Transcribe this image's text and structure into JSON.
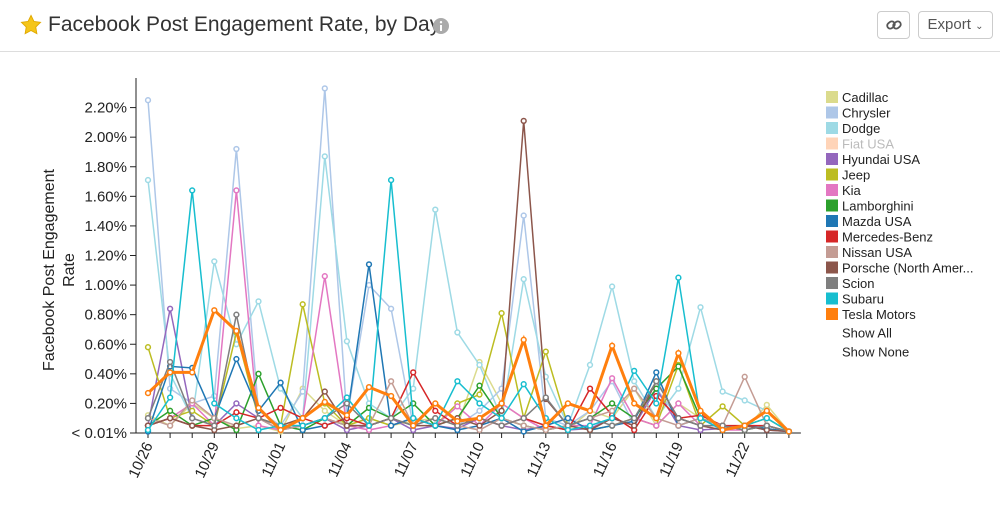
{
  "header": {
    "title": "Facebook Post Engagement Rate, by Day",
    "export": "Export"
  },
  "chart_data": {
    "type": "line",
    "y_label": "Facebook Post Engagement Rate",
    "categories": [
      "10/26",
      null,
      null,
      "10/29",
      null,
      null,
      "11/01",
      null,
      null,
      "11/04",
      null,
      null,
      "11/07",
      null,
      null,
      "11/10",
      null,
      null,
      "11/13",
      null,
      null,
      "11/16",
      null,
      null,
      "11/19",
      null,
      null,
      "11/22",
      null,
      null
    ],
    "ylim": [
      0,
      2.4
    ],
    "yticks": [
      {
        "value": 0,
        "label": "< 0.01%"
      },
      {
        "value": 0.2,
        "label": "0.20%"
      },
      {
        "value": 0.4,
        "label": "0.40%"
      },
      {
        "value": 0.6,
        "label": "0.60%"
      },
      {
        "value": 0.8,
        "label": "0.80%"
      },
      {
        "value": 1.0,
        "label": "1.00%"
      },
      {
        "value": 1.2,
        "label": "1.20%"
      },
      {
        "value": 1.4,
        "label": "1.40%"
      },
      {
        "value": 1.6,
        "label": "1.60%"
      },
      {
        "value": 1.8,
        "label": "1.80%"
      },
      {
        "value": 2.0,
        "label": "2.00%"
      },
      {
        "value": 2.2,
        "label": "2.20%"
      }
    ],
    "legend_controls": [
      "Show All",
      "Show None"
    ],
    "series": [
      {
        "name": "Cadillac",
        "color": "#dbdb8d",
        "values": [
          0.12,
          0.05,
          0.2,
          0.1,
          0.03,
          0.05,
          0.01,
          0.3,
          0.15,
          0.05,
          0.1,
          0.05,
          0.08,
          0.1,
          0.05,
          0.48,
          0.2,
          0.1,
          0.05,
          0.02,
          0.15,
          0.1,
          0.3,
          0.05,
          0.2,
          0.1,
          0.05,
          0.02,
          0.19,
          0.01
        ]
      },
      {
        "name": "Chrysler",
        "color": "#aec7e8",
        "values": [
          2.25,
          0.3,
          0.2,
          0.25,
          1.92,
          0.15,
          0.05,
          0.28,
          2.33,
          0.1,
          1.0,
          0.84,
          0.05,
          0.1,
          0.05,
          0.15,
          0.3,
          1.47,
          0.1,
          0.05,
          0.15,
          0.35,
          0.05,
          0.3,
          0.1,
          0.05,
          0.02,
          0.05,
          0.1,
          0.01
        ]
      },
      {
        "name": "Dodge",
        "color": "#9edae5",
        "values": [
          1.71,
          0.4,
          0.1,
          1.16,
          0.6,
          0.89,
          0.3,
          0.1,
          1.87,
          0.62,
          0.2,
          0.1,
          0.3,
          1.51,
          0.68,
          0.46,
          0.1,
          1.04,
          0.38,
          0.05,
          0.46,
          0.99,
          0.35,
          0.1,
          0.3,
          0.85,
          0.28,
          0.22,
          0.15,
          0.01
        ]
      },
      {
        "name": "Fiat USA",
        "color": "#ffd4b8",
        "visible": false
      },
      {
        "name": "Hyundai USA",
        "color": "#9467bd",
        "values": [
          0.05,
          0.84,
          0.1,
          0.05,
          0.2,
          0.1,
          0.02,
          0.05,
          0.1,
          0.02,
          0.05,
          0.1,
          0.02,
          0.05,
          0.03,
          0.1,
          0.05,
          0.02,
          0.05,
          0.02,
          0.03,
          0.1,
          0.05,
          0.3,
          0.05,
          0.02,
          0.03,
          0.05,
          0.02,
          0.01
        ]
      },
      {
        "name": "Jeep",
        "color": "#bcbd22",
        "values": [
          0.58,
          0.1,
          0.15,
          0.05,
          0.68,
          0.1,
          0.05,
          0.87,
          0.2,
          0.05,
          0.1,
          0.05,
          0.1,
          0.05,
          0.2,
          0.26,
          0.81,
          0.1,
          0.55,
          0.05,
          0.02,
          0.05,
          0.1,
          0.05,
          0.46,
          0.05,
          0.18,
          0.05,
          0.1,
          0.01
        ]
      },
      {
        "name": "Kia",
        "color": "#e377c2",
        "values": [
          0.05,
          0.1,
          0.2,
          0.05,
          1.64,
          0.05,
          0.02,
          0.1,
          1.06,
          0.05,
          0.02,
          0.05,
          0.1,
          0.05,
          0.18,
          0.05,
          0.2,
          0.1,
          0.02,
          0.05,
          0.05,
          0.37,
          0.1,
          0.05,
          0.2,
          0.05,
          0.02,
          0.02,
          0.05,
          0.01
        ]
      },
      {
        "name": "Lamborghini",
        "color": "#2ca02c",
        "values": [
          0.05,
          0.15,
          0.05,
          0.1,
          0.02,
          0.4,
          0.05,
          0.02,
          0.1,
          0.05,
          0.17,
          0.1,
          0.2,
          0.05,
          0.1,
          0.32,
          0.1,
          0.05,
          0.02,
          0.05,
          0.1,
          0.2,
          0.1,
          0.3,
          0.45,
          0.1,
          0.05,
          0.02,
          0.05,
          0.01
        ]
      },
      {
        "name": "Mazda USA",
        "color": "#1f77b4",
        "values": [
          0.01,
          0.45,
          0.44,
          0.1,
          0.5,
          0.15,
          0.34,
          0.02,
          0.05,
          0.1,
          1.14,
          0.05,
          0.1,
          0.05,
          0.02,
          0.05,
          0.1,
          0.01,
          0.05,
          0.1,
          0.02,
          0.05,
          0.08,
          0.41,
          0.05,
          0.1,
          0.02,
          0.05,
          0.03,
          0.01
        ]
      },
      {
        "name": "Mercedes-Benz",
        "color": "#d62728",
        "values": [
          0.05,
          0.1,
          0.05,
          0.05,
          0.14,
          0.1,
          0.17,
          0.1,
          0.05,
          0.1,
          0.05,
          0.1,
          0.41,
          0.15,
          0.05,
          0.1,
          0.05,
          0.1,
          0.05,
          0.02,
          0.3,
          0.12,
          0.02,
          0.25,
          0.1,
          0.12,
          0.05,
          0.05,
          0.05,
          0.01
        ]
      },
      {
        "name": "Nissan USA",
        "color": "#c49c94",
        "values": [
          0.1,
          0.05,
          0.22,
          0.1,
          0.05,
          0.1,
          0.02,
          0.05,
          0.1,
          0.05,
          0.05,
          0.35,
          0.05,
          0.1,
          0.05,
          0.02,
          0.1,
          0.05,
          0.02,
          0.05,
          0.1,
          0.15,
          0.3,
          0.1,
          0.05,
          0.1,
          0.05,
          0.38,
          0.05,
          0.01
        ]
      },
      {
        "name": "Porsche (North Amer...",
        "color": "#8c564b",
        "values": [
          0.05,
          0.1,
          0.05,
          0.02,
          0.05,
          0.1,
          0.05,
          0.1,
          0.28,
          0.05,
          0.05,
          0.1,
          0.05,
          0.05,
          0.1,
          0.05,
          0.15,
          2.11,
          0.23,
          0.05,
          0.02,
          0.1,
          0.05,
          0.35,
          0.1,
          0.05,
          0.02,
          0.05,
          0.02,
          0.01
        ]
      },
      {
        "name": "Scion",
        "color": "#7f7f7f",
        "values": [
          0.1,
          0.48,
          0.1,
          0.05,
          0.8,
          0.1,
          0.05,
          0.05,
          0.1,
          0.2,
          0.05,
          0.1,
          0.05,
          0.1,
          0.05,
          0.1,
          0.05,
          0.1,
          0.24,
          0.05,
          0.1,
          0.05,
          0.1,
          0.35,
          0.1,
          0.05,
          0.05,
          0.02,
          0.05,
          0.01
        ]
      },
      {
        "name": "Subaru",
        "color": "#17becf",
        "values": [
          0.02,
          0.24,
          1.64,
          0.2,
          0.1,
          0.02,
          0.05,
          0.05,
          0.1,
          0.24,
          0.05,
          1.71,
          0.1,
          0.05,
          0.35,
          0.2,
          0.1,
          0.33,
          0.1,
          0.02,
          0.05,
          0.1,
          0.42,
          0.2,
          1.05,
          0.1,
          0.02,
          0.05,
          0.1,
          0.01
        ]
      },
      {
        "name": "Tesla Motors",
        "color": "#ff7f0e",
        "width": 3,
        "values": [
          0.27,
          0.41,
          0.41,
          0.83,
          0.69,
          0.17,
          0.02,
          0.1,
          0.21,
          0.12,
          0.31,
          0.25,
          0.05,
          0.2,
          0.08,
          0.1,
          0.2,
          0.63,
          0.05,
          0.2,
          0.15,
          0.59,
          0.2,
          0.1,
          0.54,
          0.15,
          0.02,
          0.05,
          0.15,
          0.01
        ]
      }
    ]
  }
}
